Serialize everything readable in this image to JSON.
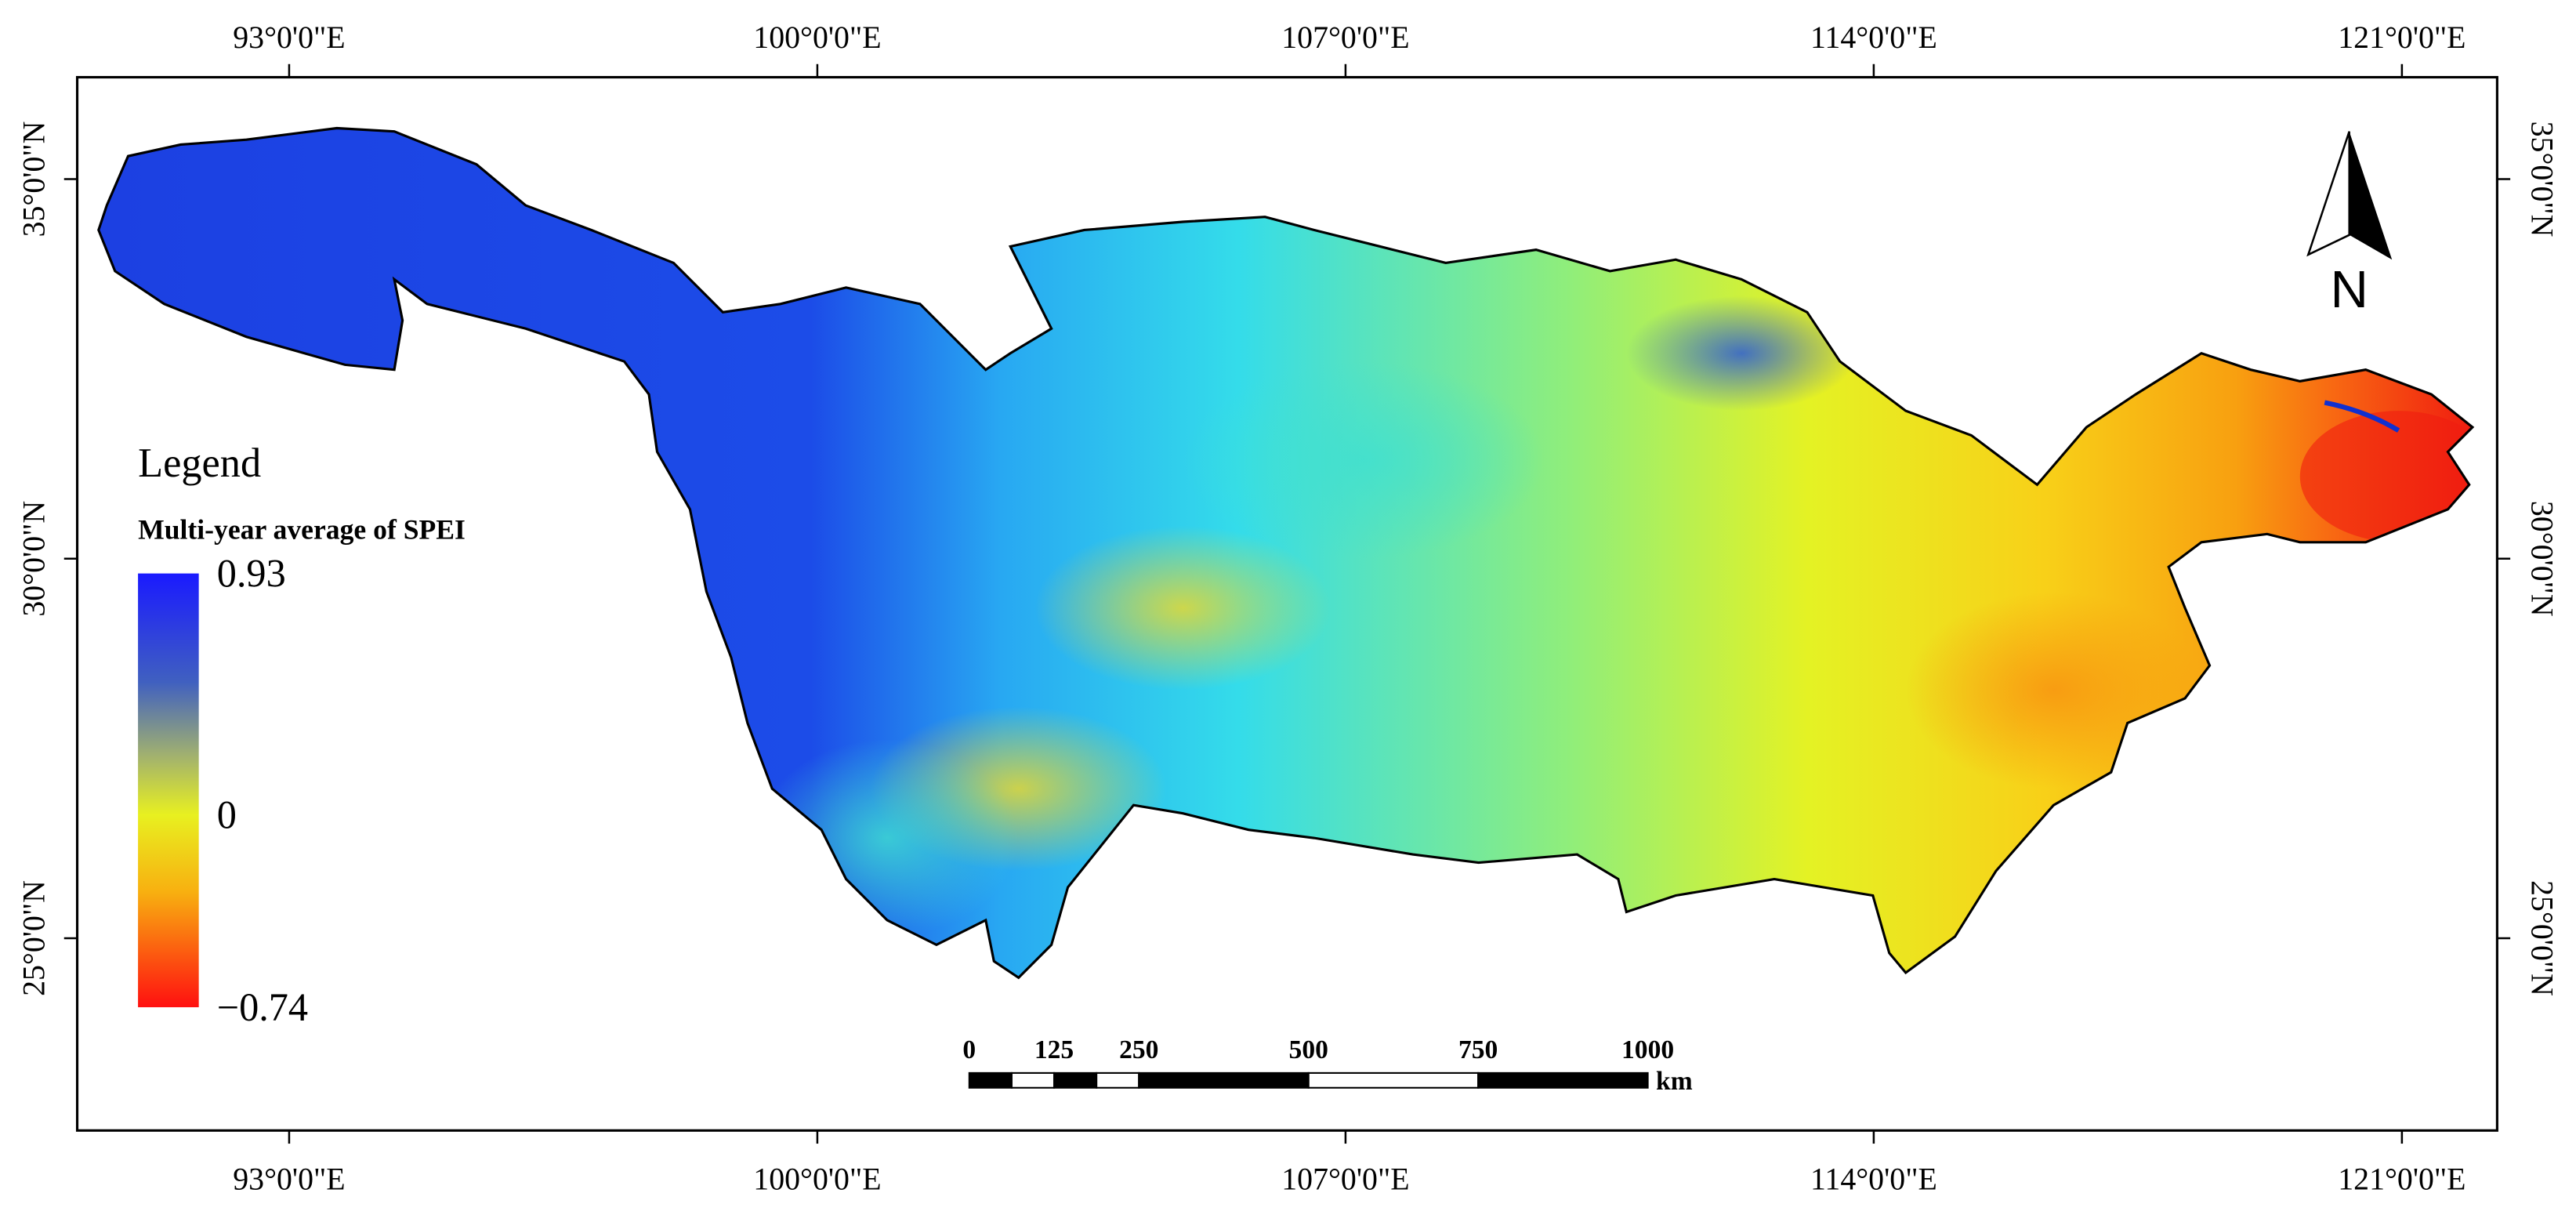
{
  "map": {
    "longitude_ticks": [
      {
        "value": 93,
        "label": "93°0'0\"E"
      },
      {
        "value": 100,
        "label": "100°0'0\"E"
      },
      {
        "value": 107,
        "label": "107°0'0\"E"
      },
      {
        "value": 114,
        "label": "114°0'0\"E"
      },
      {
        "value": 121,
        "label": "121°0'0\"E"
      }
    ],
    "latitude_ticks": [
      {
        "value": 35,
        "label": "35°0'0\"N"
      },
      {
        "value": 30,
        "label": "30°0'0\"N"
      },
      {
        "value": 25,
        "label": "25°0'0\"N"
      }
    ],
    "legend": {
      "title": "Legend",
      "variable": "Multi-year average of SPEI",
      "ticks": [
        0.93,
        0,
        {
          "value": -0.74,
          "label": "−0.74"
        }
      ]
    },
    "scale_bar": {
      "ticks": [
        0,
        125,
        250,
        500,
        750,
        1000
      ],
      "unit": "km"
    },
    "north_arrow": "N"
  }
}
